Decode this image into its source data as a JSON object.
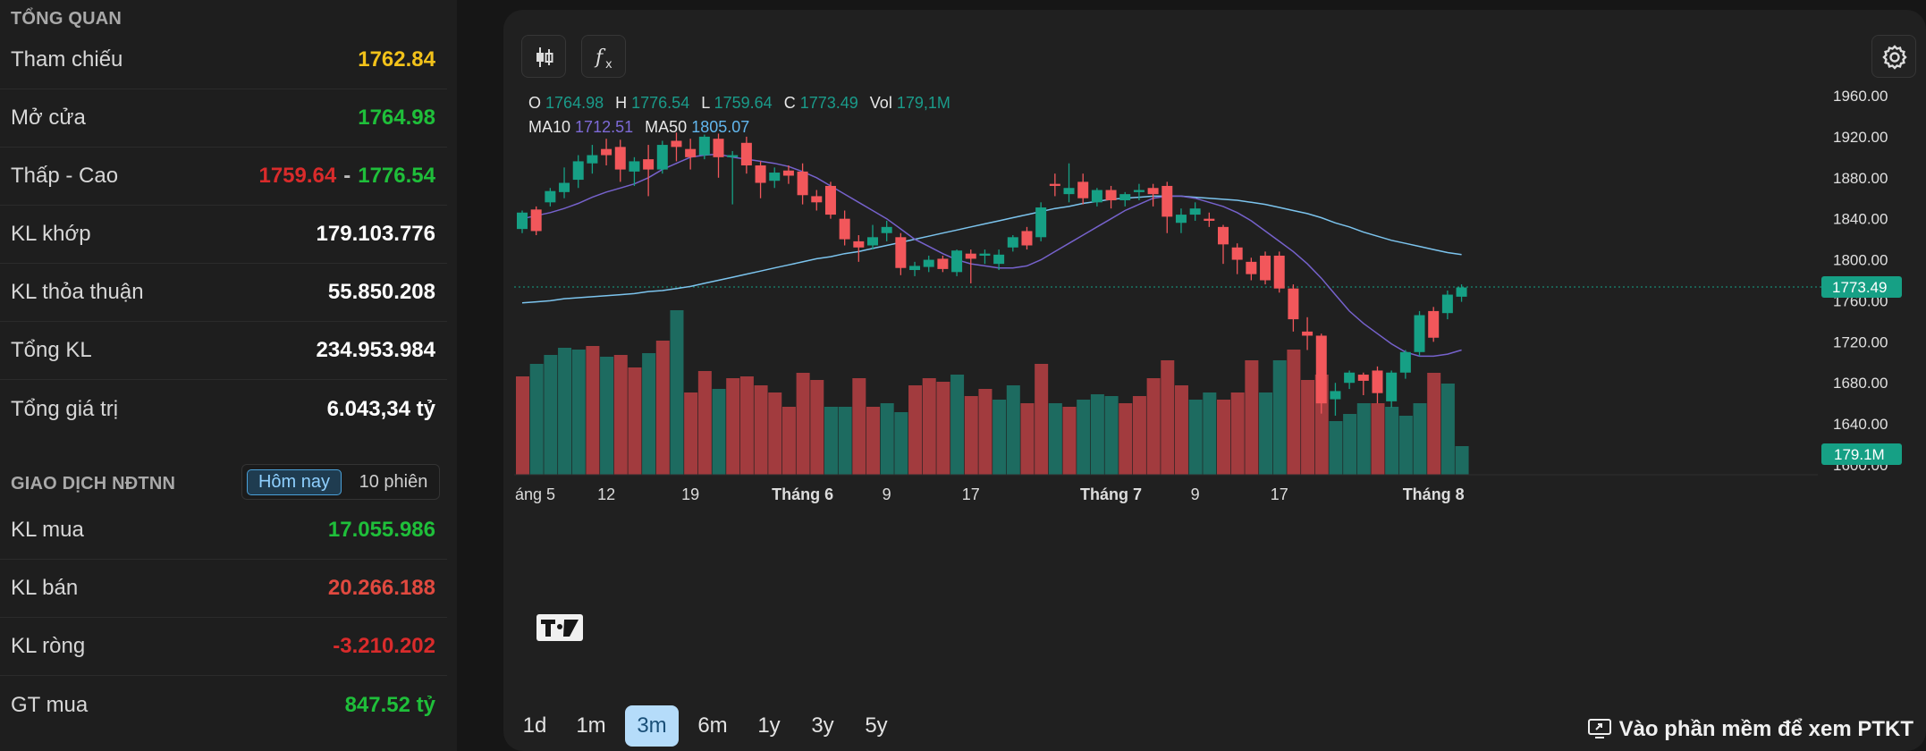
{
  "overview": {
    "title": "TỔNG QUAN",
    "rows": [
      {
        "label": "Tham chiếu",
        "value": "1762.84"
      },
      {
        "label": "Mở cửa",
        "value": "1764.98"
      },
      {
        "label": "Thấp - Cao",
        "low": "1759.64",
        "sep": "-",
        "high": "1776.54"
      },
      {
        "label": "KL khớp",
        "value": "179.103.776"
      },
      {
        "label": "KL thỏa thuận",
        "value": "55.850.208"
      },
      {
        "label": "Tổng KL",
        "value": "234.953.984"
      },
      {
        "label": "Tổng giá trị",
        "value": "6.043,34 tỷ"
      }
    ]
  },
  "foreign": {
    "title": "GIAO DỊCH NĐTNN",
    "tab_today": "Hôm nay",
    "tab_10": "10 phiên",
    "rows": [
      {
        "label": "KL mua",
        "value": "17.055.986"
      },
      {
        "label": "KL bán",
        "value": "20.266.188"
      },
      {
        "label": "KL ròng",
        "value": "-3.210.202"
      },
      {
        "label": "GT mua",
        "value": "847.52 tỷ"
      }
    ]
  },
  "legend": {
    "o_label": "O",
    "o": "1764.98",
    "h_label": "H",
    "h": "1776.54",
    "l_label": "L",
    "l": "1759.64",
    "c_label": "C",
    "c": "1773.49",
    "vol_label": "Vol",
    "vol": "179,1M",
    "ma10_label": "MA10",
    "ma10": "1712.51",
    "ma50_label": "MA50",
    "ma50": "1805.07"
  },
  "chart_data": {
    "type": "candlestick",
    "y_ticks": [
      "1960.00",
      "1920.00",
      "1880.00",
      "1840.00",
      "1800.00",
      "1760.00",
      "1720.00",
      "1680.00",
      "1640.00",
      "1600.00"
    ],
    "ylim": [
      1600,
      1960
    ],
    "x_labels": [
      {
        "i": 0,
        "t": "áng 5"
      },
      {
        "i": 6,
        "t": "12"
      },
      {
        "i": 12,
        "t": "19"
      },
      {
        "i": 20,
        "t": "Tháng 6",
        "bold": true
      },
      {
        "i": 26,
        "t": "9"
      },
      {
        "i": 32,
        "t": "17"
      },
      {
        "i": 42,
        "t": "Tháng 7",
        "bold": true
      },
      {
        "i": 48,
        "t": "9"
      },
      {
        "i": 54,
        "t": "17"
      },
      {
        "i": 65,
        "t": "Tháng 8",
        "bold": true
      }
    ],
    "last_price": "1773.49",
    "last_volume": "179.1M",
    "candles": [
      [
        1830,
        1846,
        1826,
        1848
      ],
      [
        1849,
        1828,
        1824,
        1852
      ],
      [
        1856,
        1867,
        1852,
        1870
      ],
      [
        1866,
        1875,
        1860,
        1890
      ],
      [
        1878,
        1896,
        1870,
        1902
      ],
      [
        1894,
        1902,
        1884,
        1912
      ],
      [
        1908,
        1902,
        1892,
        1918
      ],
      [
        1910,
        1888,
        1876,
        1917
      ],
      [
        1886,
        1896,
        1872,
        1900
      ],
      [
        1898,
        1888,
        1862,
        1912
      ],
      [
        1888,
        1912,
        1884,
        1916
      ],
      [
        1916,
        1910,
        1896,
        1924
      ],
      [
        1908,
        1900,
        1888,
        1918
      ],
      [
        1902,
        1920,
        1898,
        1922
      ],
      [
        1918,
        1900,
        1880,
        1923
      ],
      [
        1900,
        1902,
        1854,
        1906
      ],
      [
        1914,
        1892,
        1884,
        1920
      ],
      [
        1892,
        1875,
        1860,
        1896
      ],
      [
        1877,
        1885,
        1870,
        1890
      ],
      [
        1887,
        1882,
        1874,
        1892
      ],
      [
        1886,
        1863,
        1854,
        1894
      ],
      [
        1862,
        1856,
        1848,
        1868
      ],
      [
        1872,
        1844,
        1840,
        1876
      ],
      [
        1840,
        1820,
        1814,
        1848
      ],
      [
        1818,
        1812,
        1798,
        1824
      ],
      [
        1814,
        1822,
        1810,
        1834
      ],
      [
        1826,
        1832,
        1818,
        1838
      ],
      [
        1822,
        1792,
        1785,
        1826
      ],
      [
        1790,
        1794,
        1784,
        1798
      ],
      [
        1793,
        1800,
        1788,
        1804
      ],
      [
        1801,
        1791,
        1788,
        1804
      ],
      [
        1788,
        1809,
        1784,
        1810
      ],
      [
        1806,
        1801,
        1777,
        1810
      ],
      [
        1804,
        1806,
        1796,
        1810
      ],
      [
        1796,
        1805,
        1790,
        1810
      ],
      [
        1812,
        1822,
        1808,
        1824
      ],
      [
        1828,
        1814,
        1810,
        1832
      ],
      [
        1822,
        1851,
        1818,
        1856
      ],
      [
        1874,
        1872,
        1862,
        1884
      ],
      [
        1864,
        1870,
        1856,
        1894
      ],
      [
        1876,
        1860,
        1854,
        1884
      ],
      [
        1856,
        1868,
        1852,
        1870
      ],
      [
        1868,
        1858,
        1850,
        1872
      ],
      [
        1858,
        1864,
        1852,
        1866
      ],
      [
        1866,
        1868,
        1858,
        1874
      ],
      [
        1870,
        1864,
        1852,
        1874
      ],
      [
        1872,
        1842,
        1826,
        1876
      ],
      [
        1836,
        1844,
        1826,
        1850
      ],
      [
        1844,
        1850,
        1838,
        1856
      ],
      [
        1840,
        1838,
        1832,
        1846
      ],
      [
        1832,
        1815,
        1796,
        1834
      ],
      [
        1812,
        1800,
        1786,
        1816
      ],
      [
        1798,
        1786,
        1780,
        1802
      ],
      [
        1804,
        1780,
        1776,
        1808
      ],
      [
        1804,
        1772,
        1768,
        1808
      ],
      [
        1772,
        1742,
        1730,
        1776
      ],
      [
        1730,
        1726,
        1712,
        1744
      ],
      [
        1726,
        1660,
        1650,
        1728
      ],
      [
        1664,
        1672,
        1648,
        1680
      ],
      [
        1680,
        1690,
        1674,
        1692
      ],
      [
        1688,
        1682,
        1668,
        1690
      ],
      [
        1692,
        1670,
        1660,
        1696
      ],
      [
        1662,
        1690,
        1656,
        1692
      ],
      [
        1690,
        1710,
        1684,
        1712
      ],
      [
        1710,
        1746,
        1706,
        1750
      ],
      [
        1750,
        1724,
        1720,
        1754
      ],
      [
        1748,
        1766,
        1742,
        1770
      ],
      [
        1764,
        1773,
        1759,
        1776
      ]
    ],
    "volume": [
      [
        0.55,
        "d"
      ],
      [
        0.62,
        "u"
      ],
      [
        0.67,
        "u"
      ],
      [
        0.71,
        "u"
      ],
      [
        0.7,
        "u"
      ],
      [
        0.72,
        "d"
      ],
      [
        0.66,
        "u"
      ],
      [
        0.67,
        "d"
      ],
      [
        0.6,
        "d"
      ],
      [
        0.68,
        "u"
      ],
      [
        0.75,
        "d"
      ],
      [
        0.92,
        "u"
      ],
      [
        0.46,
        "d"
      ],
      [
        0.58,
        "d"
      ],
      [
        0.48,
        "u"
      ],
      [
        0.54,
        "d"
      ],
      [
        0.55,
        "d"
      ],
      [
        0.5,
        "d"
      ],
      [
        0.46,
        "d"
      ],
      [
        0.38,
        "d"
      ],
      [
        0.57,
        "d"
      ],
      [
        0.53,
        "d"
      ],
      [
        0.38,
        "u"
      ],
      [
        0.38,
        "u"
      ],
      [
        0.54,
        "d"
      ],
      [
        0.38,
        "d"
      ],
      [
        0.4,
        "u"
      ],
      [
        0.35,
        "u"
      ],
      [
        0.5,
        "d"
      ],
      [
        0.54,
        "d"
      ],
      [
        0.52,
        "d"
      ],
      [
        0.56,
        "u"
      ],
      [
        0.44,
        "d"
      ],
      [
        0.48,
        "d"
      ],
      [
        0.42,
        "u"
      ],
      [
        0.5,
        "u"
      ],
      [
        0.4,
        "d"
      ],
      [
        0.62,
        "d"
      ],
      [
        0.4,
        "u"
      ],
      [
        0.38,
        "d"
      ],
      [
        0.42,
        "u"
      ],
      [
        0.45,
        "u"
      ],
      [
        0.44,
        "u"
      ],
      [
        0.4,
        "d"
      ],
      [
        0.44,
        "d"
      ],
      [
        0.54,
        "d"
      ],
      [
        0.64,
        "d"
      ],
      [
        0.5,
        "d"
      ],
      [
        0.42,
        "u"
      ],
      [
        0.46,
        "u"
      ],
      [
        0.42,
        "d"
      ],
      [
        0.46,
        "d"
      ],
      [
        0.64,
        "d"
      ],
      [
        0.46,
        "u"
      ],
      [
        0.64,
        "u"
      ],
      [
        0.7,
        "d"
      ],
      [
        0.53,
        "d"
      ],
      [
        0.56,
        "d"
      ],
      [
        0.3,
        "u"
      ],
      [
        0.34,
        "u"
      ],
      [
        0.4,
        "u"
      ],
      [
        0.4,
        "d"
      ],
      [
        0.38,
        "u"
      ],
      [
        0.33,
        "u"
      ],
      [
        0.4,
        "u"
      ],
      [
        0.57,
        "d"
      ],
      [
        0.51,
        "u"
      ],
      [
        0.16,
        "u"
      ]
    ],
    "ma10": [
      1840,
      1843,
      1846,
      1850,
      1855,
      1861,
      1866,
      1870,
      1874,
      1880,
      1888,
      1894,
      1900,
      1902,
      1903,
      1900,
      1898,
      1896,
      1894,
      1891,
      1886,
      1880,
      1872,
      1864,
      1856,
      1848,
      1840,
      1830,
      1820,
      1813,
      1806,
      1800,
      1796,
      1794,
      1792,
      1792,
      1794,
      1800,
      1808,
      1816,
      1824,
      1832,
      1840,
      1848,
      1854,
      1860,
      1862,
      1862,
      1860,
      1856,
      1852,
      1846,
      1838,
      1828,
      1818,
      1808,
      1796,
      1782,
      1766,
      1750,
      1738,
      1728,
      1718,
      1710,
      1706,
      1706,
      1708,
      1712
    ],
    "ma50": [
      1758,
      1759,
      1760,
      1762,
      1763,
      1764,
      1765,
      1766,
      1767,
      1769,
      1770,
      1772,
      1774,
      1777,
      1780,
      1783,
      1786,
      1789,
      1792,
      1795,
      1798,
      1801,
      1803,
      1806,
      1808,
      1811,
      1814,
      1817,
      1820,
      1823,
      1826,
      1829,
      1832,
      1835,
      1838,
      1841,
      1844,
      1847,
      1850,
      1852,
      1855,
      1857,
      1859,
      1860,
      1861,
      1862,
      1862,
      1862,
      1861,
      1860,
      1859,
      1858,
      1856,
      1854,
      1851,
      1848,
      1845,
      1841,
      1836,
      1832,
      1827,
      1823,
      1819,
      1816,
      1813,
      1810,
      1807,
      1805
    ],
    "grid": false
  },
  "ranges": [
    "1d",
    "1m",
    "3m",
    "6m",
    "1y",
    "3y",
    "5y"
  ],
  "active_range": "3m",
  "cta": "Vào phần mềm để xem PTKT",
  "colors": {
    "up": "#16a085",
    "down": "#f2575b",
    "ma10": "#7662cc",
    "ma50": "#7cc4ee"
  },
  "icons": [
    "candlestick-icon",
    "function-icon",
    "settings-icon",
    "watermark-logo",
    "monitor-icon"
  ]
}
